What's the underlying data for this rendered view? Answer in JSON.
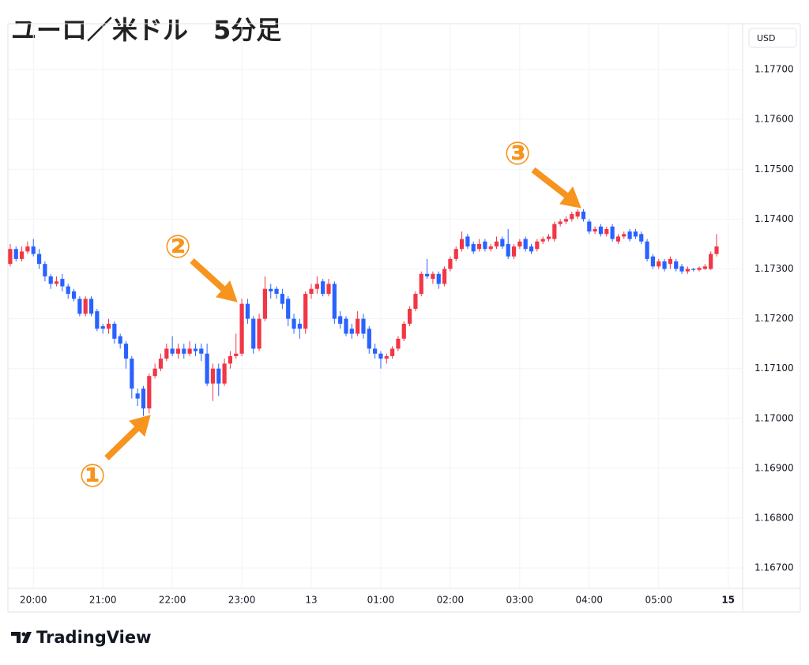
{
  "chart_data": {
    "type": "candlestick",
    "title": "ユーロ／米ドル　5分足",
    "currency": "USD",
    "up_color": "#f23645",
    "down_color": "#2962ff",
    "grid": true,
    "open": [
      1.1731,
      1.1734,
      1.1732,
      1.17335,
      1.17345,
      1.1733,
      1.1731,
      1.17285,
      1.1727,
      1.1728,
      1.17265,
      1.17255,
      1.1724,
      1.1721,
      1.1724,
      1.17215,
      1.17185,
      1.1718,
      1.1719,
      1.17165,
      1.1715,
      1.1712,
      1.1705,
      1.1706,
      1.1702,
      1.17085,
      1.171,
      1.1712,
      1.1714,
      1.1713,
      1.1714,
      1.1713,
      1.1714,
      1.1714,
      1.1713,
      1.1707,
      1.171,
      1.1707,
      1.1711,
      1.17125,
      1.1713,
      1.1723,
      1.172,
      1.1714,
      1.172,
      1.1726,
      1.1726,
      1.1725,
      1.1724,
      1.172,
      1.1719,
      1.1718,
      1.1725,
      1.1726,
      1.17275,
      1.1725,
      1.1727,
      1.17205,
      1.172,
      1.1718,
      1.1717,
      1.172,
      1.1718,
      1.1714,
      1.1713,
      1.1712,
      1.17125,
      1.1714,
      1.1716,
      1.1719,
      1.1722,
      1.1725,
      1.1729,
      1.1728,
      1.1729,
      1.1727,
      1.173,
      1.1732,
      1.1734,
      1.17365,
      1.1735,
      1.1734,
      1.17355,
      1.1734,
      1.17345,
      1.1736,
      1.1735,
      1.17325,
      1.17345,
      1.1736,
      1.17345,
      1.1734,
      1.17355,
      1.1736,
      1.1736,
      1.1739,
      1.17395,
      1.174,
      1.17405,
      1.17415,
      1.17395,
      1.17375,
      1.17385,
      1.1737,
      1.17385,
      1.17355,
      1.17365,
      1.17375,
      1.17375,
      1.1737,
      1.17355,
      1.17325,
      1.17305,
      1.17315,
      1.1731,
      1.17315,
      1.17305,
      1.17295,
      1.173,
      1.17298,
      1.173,
      1.173,
      1.1733
    ],
    "high": [
      1.1735,
      1.17345,
      1.17345,
      1.17355,
      1.1736,
      1.1734,
      1.17315,
      1.1729,
      1.17285,
      1.1729,
      1.1727,
      1.1726,
      1.17245,
      1.17245,
      1.17245,
      1.1722,
      1.1719,
      1.172,
      1.17195,
      1.1717,
      1.17155,
      1.17125,
      1.1706,
      1.17065,
      1.1709,
      1.1711,
      1.1713,
      1.1715,
      1.17165,
      1.1715,
      1.1715,
      1.17155,
      1.1715,
      1.1715,
      1.1715,
      1.1711,
      1.1711,
      1.1712,
      1.17135,
      1.1717,
      1.1724,
      1.1724,
      1.17205,
      1.1721,
      1.17285,
      1.1727,
      1.17265,
      1.1726,
      1.17245,
      1.1721,
      1.172,
      1.17255,
      1.1727,
      1.17285,
      1.1728,
      1.1728,
      1.17275,
      1.17215,
      1.17205,
      1.1719,
      1.17215,
      1.1721,
      1.17185,
      1.1715,
      1.17135,
      1.1713,
      1.17145,
      1.17165,
      1.17195,
      1.17225,
      1.17255,
      1.17295,
      1.1732,
      1.17295,
      1.17295,
      1.17305,
      1.17325,
      1.17345,
      1.17375,
      1.1737,
      1.17355,
      1.1736,
      1.1736,
      1.1735,
      1.17365,
      1.17365,
      1.1738,
      1.1735,
      1.1736,
      1.17365,
      1.1735,
      1.1736,
      1.17365,
      1.1737,
      1.17395,
      1.174,
      1.17405,
      1.17415,
      1.1742,
      1.1742,
      1.174,
      1.17385,
      1.1739,
      1.17385,
      1.1739,
      1.1737,
      1.17375,
      1.1738,
      1.1738,
      1.17375,
      1.1736,
      1.1733,
      1.1732,
      1.1732,
      1.17325,
      1.1732,
      1.1731,
      1.17305,
      1.17302,
      1.17305,
      1.1731,
      1.17335,
      1.1737
    ],
    "low": [
      1.17305,
      1.17315,
      1.17315,
      1.1733,
      1.17325,
      1.173,
      1.17275,
      1.1726,
      1.17265,
      1.17255,
      1.1724,
      1.17235,
      1.17205,
      1.17205,
      1.17205,
      1.17175,
      1.1717,
      1.1717,
      1.1715,
      1.1714,
      1.171,
      1.1704,
      1.17025,
      1.17005,
      1.1701,
      1.1708,
      1.17095,
      1.17115,
      1.17125,
      1.1712,
      1.1712,
      1.17125,
      1.17125,
      1.17115,
      1.17065,
      1.17035,
      1.17045,
      1.17065,
      1.171,
      1.1712,
      1.17125,
      1.1719,
      1.1713,
      1.17135,
      1.17195,
      1.1724,
      1.1724,
      1.1722,
      1.17185,
      1.1717,
      1.1716,
      1.1717,
      1.1724,
      1.1725,
      1.17245,
      1.17245,
      1.1719,
      1.1718,
      1.17165,
      1.1716,
      1.17165,
      1.1716,
      1.1713,
      1.1712,
      1.171,
      1.1711,
      1.1712,
      1.17135,
      1.17155,
      1.17185,
      1.17215,
      1.17245,
      1.1728,
      1.1727,
      1.1726,
      1.17265,
      1.17295,
      1.17315,
      1.17335,
      1.1734,
      1.1733,
      1.17335,
      1.17335,
      1.17335,
      1.1734,
      1.1734,
      1.1732,
      1.1732,
      1.1734,
      1.17335,
      1.1733,
      1.17335,
      1.1735,
      1.17355,
      1.17355,
      1.17385,
      1.1739,
      1.17395,
      1.174,
      1.17395,
      1.1737,
      1.1737,
      1.17365,
      1.17365,
      1.17355,
      1.1735,
      1.1736,
      1.17355,
      1.1736,
      1.1735,
      1.17315,
      1.173,
      1.173,
      1.17295,
      1.173,
      1.17295,
      1.1729,
      1.1729,
      1.17295,
      1.17295,
      1.17298,
      1.17298,
      1.17325
    ],
    "close": [
      1.1734,
      1.1732,
      1.17335,
      1.17345,
      1.1733,
      1.1731,
      1.17285,
      1.1727,
      1.17275,
      1.17265,
      1.1725,
      1.1724,
      1.1721,
      1.1724,
      1.1721,
      1.1718,
      1.1718,
      1.1719,
      1.1716,
      1.1715,
      1.1712,
      1.1706,
      1.1704,
      1.1702,
      1.17085,
      1.171,
      1.1712,
      1.1714,
      1.1713,
      1.1714,
      1.1713,
      1.1714,
      1.17135,
      1.1713,
      1.1707,
      1.171,
      1.1707,
      1.1711,
      1.17125,
      1.1713,
      1.1723,
      1.172,
      1.1714,
      1.172,
      1.1726,
      1.17255,
      1.1725,
      1.1723,
      1.172,
      1.1718,
      1.1718,
      1.1725,
      1.1726,
      1.1727,
      1.1725,
      1.1727,
      1.172,
      1.1719,
      1.1717,
      1.1717,
      1.172,
      1.1717,
      1.1714,
      1.1713,
      1.1712,
      1.17125,
      1.1714,
      1.1716,
      1.1719,
      1.1722,
      1.1725,
      1.1729,
      1.17285,
      1.1729,
      1.1727,
      1.173,
      1.1732,
      1.1734,
      1.1736,
      1.17345,
      1.17335,
      1.1735,
      1.1734,
      1.17345,
      1.17355,
      1.17345,
      1.17325,
      1.17345,
      1.17355,
      1.1734,
      1.17335,
      1.17355,
      1.1736,
      1.17365,
      1.1739,
      1.17395,
      1.174,
      1.1741,
      1.17415,
      1.174,
      1.17375,
      1.1738,
      1.1737,
      1.1738,
      1.1736,
      1.17365,
      1.1737,
      1.1736,
      1.17365,
      1.17355,
      1.1732,
      1.17305,
      1.17315,
      1.173,
      1.1732,
      1.173,
      1.17295,
      1.173,
      1.17298,
      1.17302,
      1.17305,
      1.1733,
      1.17345
    ],
    "xlim": [
      -0.4,
      126.5
    ],
    "ylim": [
      1.16659,
      1.17792
    ],
    "xticks": [
      {
        "value": 4,
        "label": "20:00"
      },
      {
        "value": 16,
        "label": "21:00"
      },
      {
        "value": 28,
        "label": "22:00"
      },
      {
        "value": 40,
        "label": "23:00"
      },
      {
        "value": 52,
        "label": "13"
      },
      {
        "value": 64,
        "label": "01:00"
      },
      {
        "value": 76,
        "label": "02:00"
      },
      {
        "value": 88,
        "label": "03:00"
      },
      {
        "value": 100,
        "label": "04:00"
      },
      {
        "value": 112,
        "label": "05:00"
      },
      {
        "value": 124,
        "label": "15"
      }
    ],
    "yticks": [
      {
        "value": 1.167,
        "label": "1.16700"
      },
      {
        "value": 1.168,
        "label": "1.16800"
      },
      {
        "value": 1.169,
        "label": "1.16900"
      },
      {
        "value": 1.17,
        "label": "1.17000"
      },
      {
        "value": 1.171,
        "label": "1.17100"
      },
      {
        "value": 1.172,
        "label": "1.17200"
      },
      {
        "value": 1.173,
        "label": "1.17300"
      },
      {
        "value": 1.174,
        "label": "1.17400"
      },
      {
        "value": 1.175,
        "label": "1.17500"
      },
      {
        "value": 1.176,
        "label": "1.17600"
      },
      {
        "value": 1.177,
        "label": "1.17700"
      }
    ],
    "annotations": [
      "①",
      "②",
      "③"
    ]
  },
  "brand": "TradingView"
}
